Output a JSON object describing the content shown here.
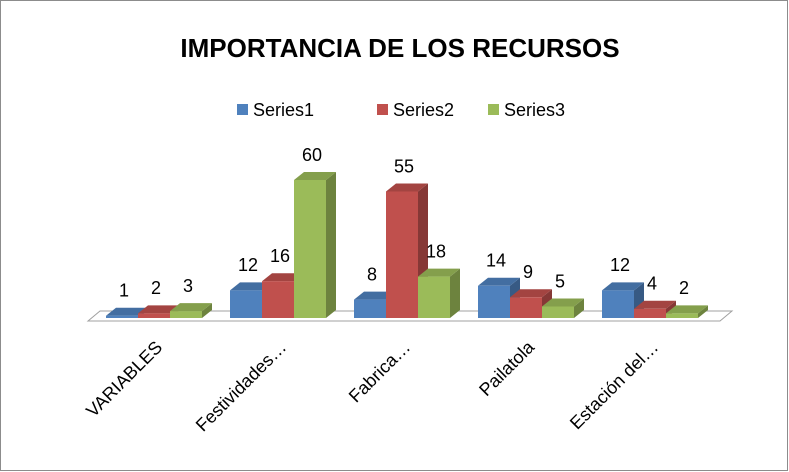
{
  "chart_data": {
    "type": "bar3d",
    "title": "IMPORTANCIA DE LOS RECURSOS",
    "categories": [
      "VARIABLES",
      "Festividades…",
      "Fabrica…",
      "Pailatola",
      "Estación del…"
    ],
    "series": [
      {
        "name": "Series1",
        "color": "#4f81bd",
        "values": [
          1,
          12,
          8,
          14,
          12
        ]
      },
      {
        "name": "Series2",
        "color": "#c0504d",
        "values": [
          2,
          16,
          55,
          9,
          4
        ]
      },
      {
        "name": "Series3",
        "color": "#9bbb59",
        "values": [
          3,
          60,
          18,
          5,
          2
        ]
      }
    ],
    "legend": "top"
  }
}
